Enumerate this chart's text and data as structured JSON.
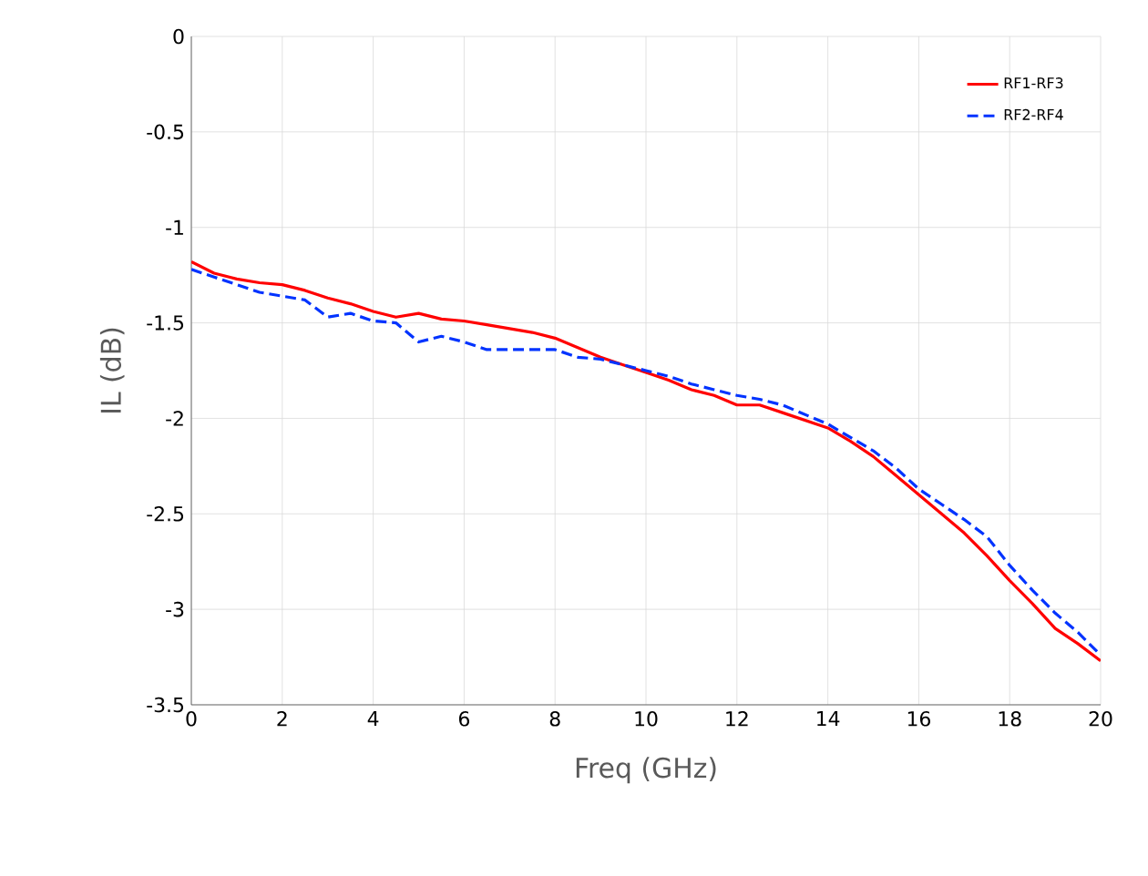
{
  "chart_data": {
    "type": "line",
    "xlabel": "Freq (GHz)",
    "ylabel": "IL (dB)",
    "x": [
      0,
      0.5,
      1,
      1.5,
      2,
      2.5,
      3,
      3.5,
      4,
      4.5,
      5,
      5.5,
      6,
      6.5,
      7,
      7.5,
      8,
      8.5,
      9,
      9.5,
      10,
      10.5,
      11,
      11.5,
      12,
      12.5,
      13,
      13.5,
      14,
      14.5,
      15,
      15.5,
      16,
      16.5,
      17,
      17.5,
      18,
      18.5,
      19,
      19.5,
      20
    ],
    "series": [
      {
        "name": "RF1-RF3",
        "color": "#ff0000",
        "line_style": "solid",
        "values": [
          -1.18,
          -1.24,
          -1.27,
          -1.29,
          -1.3,
          -1.33,
          -1.37,
          -1.4,
          -1.44,
          -1.47,
          -1.45,
          -1.48,
          -1.49,
          -1.51,
          -1.53,
          -1.55,
          -1.58,
          -1.63,
          -1.68,
          -1.72,
          -1.76,
          -1.8,
          -1.85,
          -1.88,
          -1.93,
          -1.93,
          -1.97,
          -2.01,
          -2.05,
          -2.12,
          -2.2,
          -2.3,
          -2.4,
          -2.5,
          -2.6,
          -2.72,
          -2.85,
          -2.97,
          -3.1,
          -3.18,
          -3.27
        ]
      },
      {
        "name": "RF2-RF4",
        "color": "#0033ff",
        "line_style": "dashed",
        "values": [
          -1.22,
          -1.26,
          -1.3,
          -1.34,
          -1.36,
          -1.38,
          -1.47,
          -1.45,
          -1.49,
          -1.5,
          -1.6,
          -1.57,
          -1.6,
          -1.64,
          -1.64,
          -1.64,
          -1.64,
          -1.68,
          -1.69,
          -1.72,
          -1.75,
          -1.78,
          -1.82,
          -1.85,
          -1.88,
          -1.9,
          -1.93,
          -1.98,
          -2.03,
          -2.1,
          -2.17,
          -2.26,
          -2.37,
          -2.45,
          -2.53,
          -2.62,
          -2.77,
          -2.9,
          -3.02,
          -3.12,
          -3.24
        ]
      }
    ],
    "xlim": [
      0,
      20
    ],
    "ylim": [
      -3.5,
      0
    ],
    "xticks": [
      0,
      2,
      4,
      6,
      8,
      10,
      12,
      14,
      16,
      18,
      20
    ],
    "yticks": [
      {
        "value": -3.5,
        "label": "-3.5"
      },
      {
        "value": -3,
        "label": "-3"
      },
      {
        "value": -2.5,
        "label": "-2.5"
      },
      {
        "value": -2,
        "label": "-2"
      },
      {
        "value": -1.5,
        "label": "-1.5"
      },
      {
        "value": -1,
        "label": "-1"
      },
      {
        "value": -0.5,
        "label": "-0.5"
      },
      {
        "value": 0,
        "label": "0"
      }
    ],
    "grid": true,
    "legend": "top right",
    "marker": "none"
  }
}
